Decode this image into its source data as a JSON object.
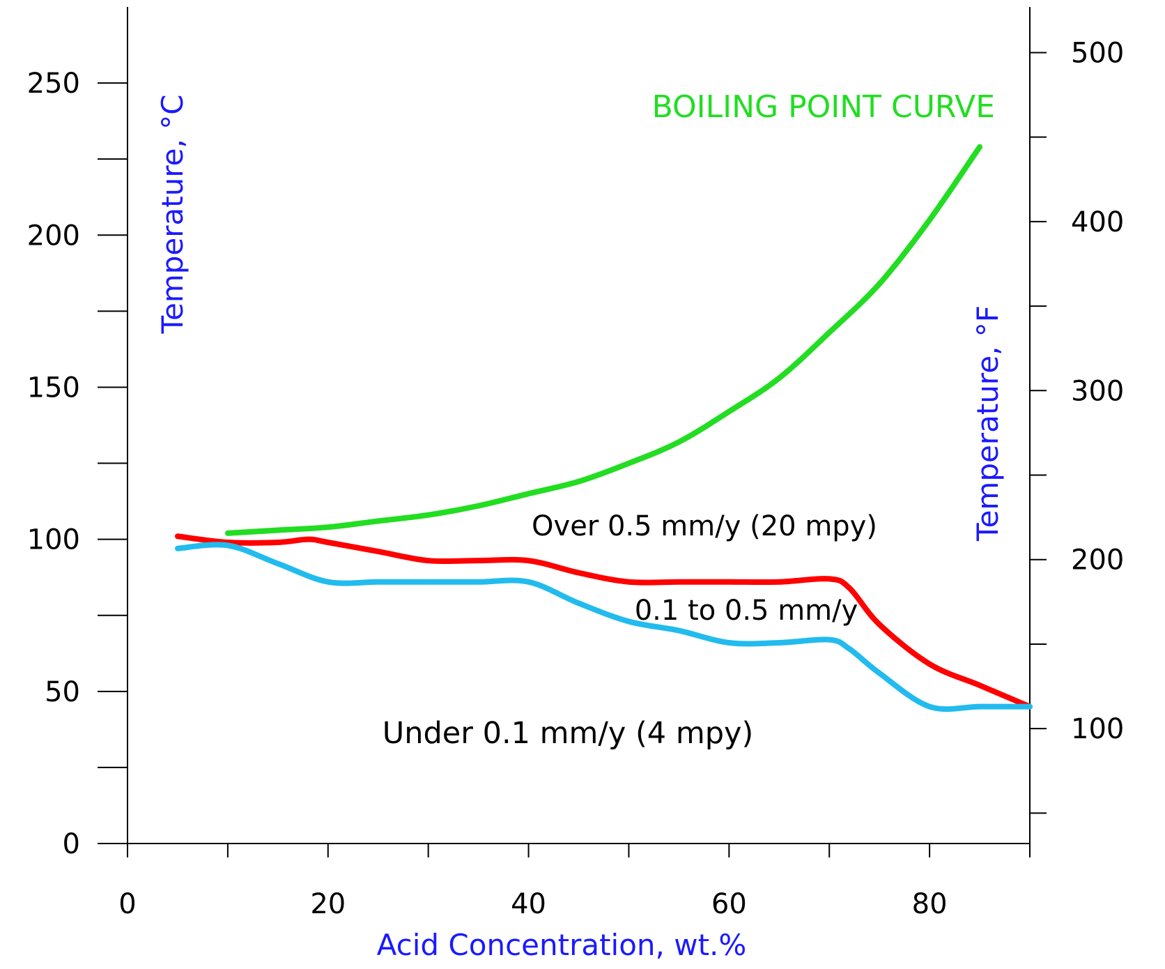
{
  "chart_data": {
    "type": "line",
    "xlabel": "Acid Concentration, wt.%",
    "ylabel": "Temperature, °C",
    "y2label": "Temperature, °F",
    "title": "BOILING POINT CURVE",
    "xlim": [
      0,
      90
    ],
    "ylim": [
      0,
      275
    ],
    "y2lim": [
      32,
      527
    ],
    "x_ticks": [
      0,
      20,
      40,
      60,
      80
    ],
    "y_ticks": [
      0,
      50,
      100,
      150,
      200,
      250
    ],
    "y2_ticks": [
      100,
      200,
      300,
      400,
      500
    ],
    "x_tick_labels": [
      "0",
      "20",
      "40",
      "60",
      "80"
    ],
    "y_tick_labels": [
      "0",
      "50",
      "100",
      "150",
      "200",
      "250"
    ],
    "y2_tick_labels": [
      "100",
      "200",
      "300",
      "400",
      "500"
    ],
    "grid": false,
    "annotations": {
      "over": "Over 0.5 mm/y (20 mpy)",
      "mid": "0.1 to 0.5 mm/y",
      "under": "Under 0.1 mm/y (4 mpy)"
    },
    "series": [
      {
        "name": "BOILING POINT CURVE",
        "color": "#22dd22",
        "x": [
          10,
          15,
          20,
          25,
          30,
          35,
          40,
          45,
          50,
          55,
          60,
          65,
          70,
          75,
          80,
          85
        ],
        "y": [
          102,
          103,
          104,
          106,
          108,
          111,
          115,
          119,
          125,
          132,
          142,
          153,
          168,
          184,
          205,
          229
        ]
      },
      {
        "color": "#ff0000",
        "x": [
          5,
          10,
          15,
          18,
          20,
          25,
          30,
          35,
          40,
          45,
          50,
          55,
          60,
          65,
          70,
          72,
          75,
          80,
          85,
          90
        ],
        "y": [
          101,
          99,
          99,
          100,
          99,
          96,
          93,
          93,
          93,
          89,
          86,
          86,
          86,
          86,
          87,
          84,
          72,
          59,
          52,
          45
        ]
      },
      {
        "color": "#22bbee",
        "x": [
          5,
          10,
          15,
          20,
          25,
          30,
          35,
          40,
          45,
          50,
          55,
          60,
          65,
          70,
          72,
          75,
          80,
          85,
          90
        ],
        "y": [
          97,
          98,
          92,
          86,
          86,
          86,
          86,
          86,
          79,
          73,
          70,
          66,
          66,
          67,
          64,
          56,
          45,
          45,
          45
        ]
      }
    ]
  }
}
